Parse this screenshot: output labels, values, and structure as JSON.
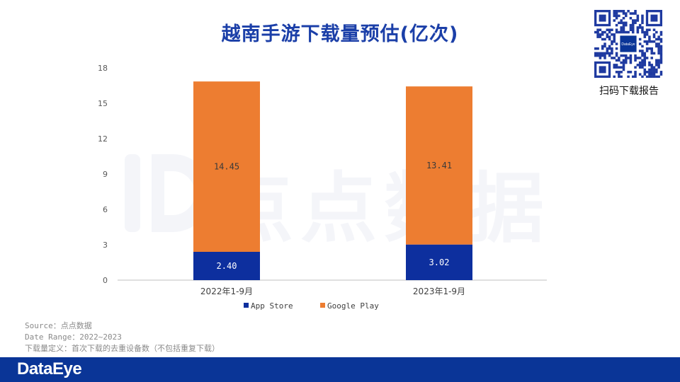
{
  "title": "越南手游下载量预估(亿次)",
  "qr": {
    "caption": "扫码下载报告",
    "center_label": "DataEye"
  },
  "watermark": "点点数据",
  "footnotes": [
    "Source：点点数据",
    "Date Range：2022~2023",
    "下载量定义：首次下载的去重设备数（不包括重复下载）"
  ],
  "footer": {
    "logo": "DataEye",
    "bar_color": "#0a3597"
  },
  "chart_data": {
    "type": "bar",
    "stacked": true,
    "title": "越南手游下载量预估(亿次)",
    "categories": [
      "2022年1-9月",
      "2023年1-9月"
    ],
    "series": [
      {
        "name": "App Store",
        "color": "#0d2f9e",
        "values": [
          2.4,
          3.02
        ],
        "labels": [
          "2.40",
          "3.02"
        ]
      },
      {
        "name": "Google Play",
        "color": "#ed7d31",
        "values": [
          14.45,
          13.41
        ],
        "labels": [
          "14.45",
          "13.41"
        ]
      }
    ],
    "ylim": [
      0,
      18
    ],
    "yticks": [
      0,
      3,
      6,
      9,
      12,
      15,
      18
    ],
    "grid": false,
    "legend": "bottom"
  }
}
